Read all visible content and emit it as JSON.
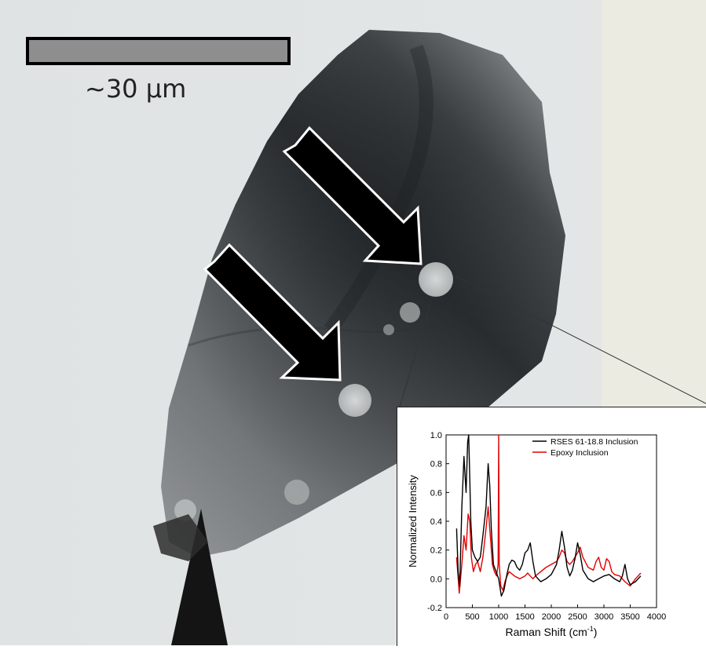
{
  "scale_bar": {
    "label": "~30 µm"
  },
  "colors": {
    "background": "#dfe3e4",
    "wall": "#e9e9df",
    "crystal_dark": "#2a2d2f",
    "crystal_light": "#9a9d9f",
    "arrow_fill": "#000000",
    "arrow_stroke": "#ffffff",
    "needle": "#1a1a1a"
  },
  "chart_data": {
    "type": "line",
    "xlabel": "Raman Shift (cm⁻¹)",
    "xlabel_main": "Raman Shift (cm",
    "xlabel_sup": "-1",
    "xlabel_tail": ")",
    "ylabel": "Normalized Intensity",
    "xlim": [
      0,
      4000
    ],
    "ylim": [
      -0.2,
      1.0
    ],
    "xticks": [
      0,
      500,
      1000,
      1500,
      2000,
      2500,
      3000,
      3500,
      4000
    ],
    "yticks": [
      -0.2,
      0.0,
      0.2,
      0.4,
      0.6,
      0.8,
      1.0
    ],
    "ytick_labels": [
      "-0.2",
      "0.0",
      "0.2",
      "0.4",
      "0.6",
      "0.8",
      "1.0"
    ],
    "legend_position": "top-right",
    "series": [
      {
        "name": "RSES 61-18.8 Inclusion",
        "color": "#000000",
        "x": [
          200,
          230,
          260,
          300,
          340,
          380,
          410,
          430,
          450,
          470,
          500,
          550,
          600,
          650,
          700,
          760,
          800,
          830,
          860,
          900,
          950,
          1000,
          1050,
          1100,
          1150,
          1200,
          1250,
          1300,
          1350,
          1400,
          1450,
          1500,
          1550,
          1600,
          1650,
          1700,
          1800,
          1900,
          2000,
          2100,
          2150,
          2200,
          2250,
          2300,
          2350,
          2400,
          2450,
          2500,
          2550,
          2600,
          2700,
          2800,
          2900,
          3000,
          3100,
          3200,
          3300,
          3350,
          3400,
          3450,
          3500,
          3600,
          3700
        ],
        "y": [
          0.35,
          0.05,
          -0.05,
          0.5,
          0.85,
          0.6,
          0.95,
          1.0,
          0.7,
          0.4,
          0.2,
          0.15,
          0.12,
          0.15,
          0.3,
          0.5,
          0.8,
          0.65,
          0.35,
          0.1,
          0.05,
          0.0,
          -0.12,
          -0.08,
          0.02,
          0.1,
          0.13,
          0.12,
          0.08,
          0.06,
          0.1,
          0.18,
          0.2,
          0.25,
          0.12,
          0.02,
          -0.02,
          0.0,
          0.03,
          0.1,
          0.2,
          0.33,
          0.22,
          0.08,
          0.02,
          0.06,
          0.14,
          0.25,
          0.17,
          0.06,
          0.0,
          -0.02,
          0.0,
          0.02,
          0.03,
          0.0,
          -0.02,
          0.02,
          0.1,
          0.0,
          -0.04,
          -0.02,
          0.02
        ]
      },
      {
        "name": "Epoxy Inclusion",
        "color": "#e00000",
        "x": [
          200,
          250,
          300,
          340,
          380,
          420,
          450,
          480,
          520,
          560,
          600,
          650,
          700,
          760,
          800,
          840,
          880,
          920,
          960,
          990,
          1000,
          1010,
          1040,
          1080,
          1120,
          1160,
          1200,
          1300,
          1400,
          1500,
          1550,
          1600,
          1650,
          1700,
          1800,
          1900,
          2000,
          2100,
          2150,
          2200,
          2250,
          2300,
          2350,
          2400,
          2500,
          2550,
          2600,
          2700,
          2800,
          2850,
          2900,
          2950,
          3000,
          3050,
          3100,
          3150,
          3200,
          3300,
          3400,
          3500,
          3600,
          3700
        ],
        "y": [
          0.15,
          -0.1,
          0.1,
          0.3,
          0.2,
          0.45,
          0.4,
          0.15,
          0.05,
          0.1,
          0.12,
          0.05,
          0.15,
          0.35,
          0.5,
          0.3,
          0.1,
          0.05,
          0.02,
          0.1,
          1.0,
          0.1,
          -0.05,
          -0.08,
          -0.02,
          0.02,
          0.05,
          0.02,
          0.0,
          0.02,
          0.04,
          0.02,
          0.0,
          0.02,
          0.05,
          0.08,
          0.1,
          0.12,
          0.15,
          0.2,
          0.18,
          0.12,
          0.1,
          0.12,
          0.18,
          0.22,
          0.15,
          0.08,
          0.06,
          0.12,
          0.15,
          0.08,
          0.06,
          0.14,
          0.12,
          0.05,
          0.03,
          0.02,
          -0.02,
          -0.05,
          0.0,
          0.04
        ]
      }
    ]
  }
}
